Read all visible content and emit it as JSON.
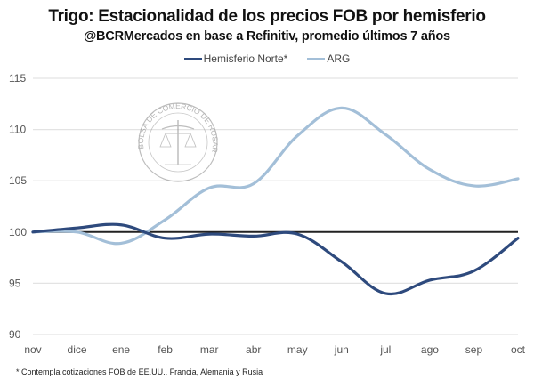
{
  "chart_data": {
    "type": "line",
    "title": "Trigo: Estacionalidad de los precios FOB por hemisferio",
    "subtitle": "@BCRMercados en base a Refinitiv, promedio últimos 7 años",
    "categories": [
      "nov",
      "dice",
      "ene",
      "feb",
      "mar",
      "abr",
      "may",
      "jun",
      "jul",
      "ago",
      "sep",
      "oct"
    ],
    "series": [
      {
        "name": "Hemisferio Norte*",
        "color": "#2e4a7d",
        "values": [
          100.0,
          100.4,
          100.7,
          99.4,
          99.8,
          99.6,
          99.8,
          97.1,
          94.0,
          95.3,
          96.2,
          99.4
        ]
      },
      {
        "name": "ARG",
        "color": "#a3bfd8",
        "values": [
          100.0,
          100.0,
          98.9,
          101.2,
          104.3,
          104.7,
          109.4,
          112.1,
          109.5,
          106.1,
          104.5,
          105.2
        ]
      }
    ],
    "reference_line": {
      "value": 100,
      "color": "#222222"
    },
    "yticks": [
      90,
      95,
      100,
      105,
      110,
      115
    ],
    "ylim": [
      90,
      115
    ],
    "grid": true,
    "legend_position": "top-center",
    "xlabel": "",
    "ylabel": "",
    "footnote": "* Contempla cotizaciones FOB de EE.UU., Francia, Alemania y Rusia",
    "watermark": "BOLSA DE COMERCIO DE ROSARIO"
  }
}
